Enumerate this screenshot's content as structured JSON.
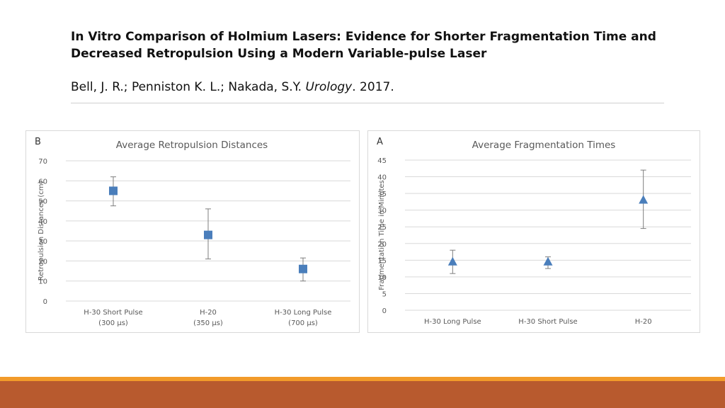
{
  "slide": {
    "title": "In Vitro Comparison of Holmium Lasers: Evidence for Shorter Fragmentation Time and Decreased Retropulsion Using a Modern Variable-pulse Laser",
    "authors": "Bell, J. R.; Penniston K. L.; Nakada, S.Y. ",
    "journal": "Urology",
    "year": ". 2017."
  },
  "colors": {
    "marker": "#4a7ebb",
    "error_bar": "#7f7f7f",
    "grid": "#d9d9d9",
    "text": "#595959",
    "footer_orange": "#f29b2a",
    "footer_rust": "#b85a2e"
  },
  "chart_data": [
    {
      "panel_label": "B",
      "type": "scatter",
      "marker": "square",
      "title": "Average Retropulsion Distances",
      "xlabel": "",
      "ylabel": "Retropulsion Distances (cm)",
      "ylim": [
        0,
        70
      ],
      "yticks": [
        0,
        10,
        20,
        30,
        40,
        50,
        60,
        70
      ],
      "grid": true,
      "categories": [
        [
          "H-30 Short Pulse",
          "(300 µs)"
        ],
        [
          "H-20",
          "(350 µs)"
        ],
        [
          "H-30 Long Pulse",
          "(700 µs)"
        ]
      ],
      "values": [
        55,
        33,
        16
      ],
      "error_low": [
        47.5,
        21,
        10
      ],
      "error_high": [
        62,
        46,
        21.5
      ]
    },
    {
      "panel_label": "A",
      "type": "scatter",
      "marker": "triangle",
      "title": "Average Fragmentation Times",
      "xlabel": "",
      "ylabel": "Fragmentation Time in Minutes",
      "ylim": [
        0,
        45
      ],
      "yticks": [
        0,
        5,
        10,
        15,
        20,
        25,
        30,
        35,
        40,
        45
      ],
      "grid": true,
      "categories": [
        [
          "H-30 Long Pulse"
        ],
        [
          "H-30 Short Pulse"
        ],
        [
          "H-20"
        ]
      ],
      "values": [
        14.5,
        14.5,
        33
      ],
      "error_low": [
        11,
        12.5,
        24.5
      ],
      "error_high": [
        18,
        16,
        42
      ]
    }
  ]
}
